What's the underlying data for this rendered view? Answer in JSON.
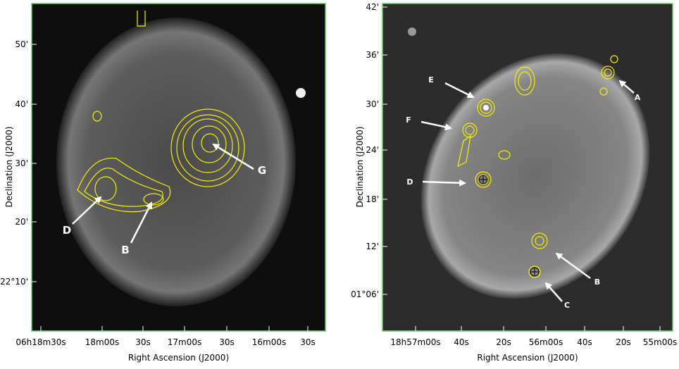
{
  "panels": [
    {
      "x_label": "Right Ascension (J2000)",
      "y_label": "Declination (J2000)",
      "x_ticks": [
        "06h18m30s",
        "18m00s",
        "30s",
        "17m00s",
        "30s",
        "16m00s",
        "30s"
      ],
      "y_ticks": [
        "50'",
        "40'",
        "30'",
        "20'",
        "22°10'"
      ],
      "labels": [
        "D",
        "B",
        "G"
      ]
    },
    {
      "x_label": "Right Ascension (J2000)",
      "y_label": "Declination (J2000)",
      "x_ticks": [
        "18h57m00s",
        "40s",
        "20s",
        "56m00s",
        "40s",
        "20s",
        "55m00s"
      ],
      "y_ticks": [
        "42'",
        "36'",
        "30'",
        "24'",
        "18'",
        "12'",
        "01°06'"
      ],
      "labels": [
        "A",
        "E",
        "F",
        "D",
        "B",
        "C"
      ]
    }
  ]
}
